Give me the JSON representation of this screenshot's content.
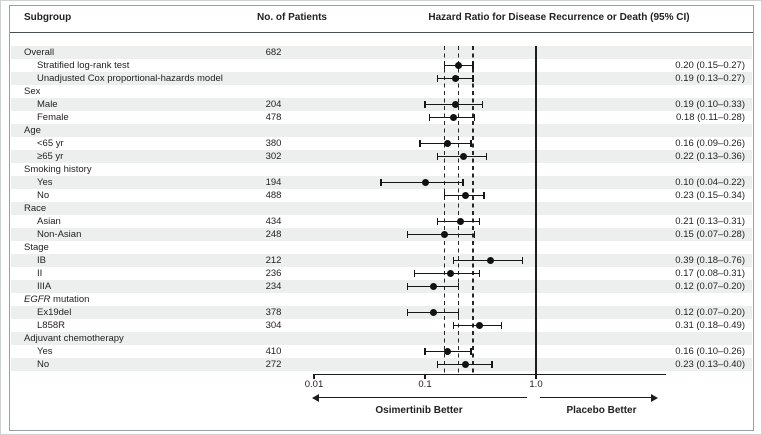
{
  "header": {
    "subgroup": "Subgroup",
    "patients": "No. of Patients",
    "hazard": "Hazard Ratio for Disease Recurrence or Death (95% CI)"
  },
  "footer": {
    "left_label": "Osimertinib Better",
    "right_label": "Placebo Better"
  },
  "colors": {
    "band": "#edefef",
    "ink": "#222222",
    "frame": "#98a0a3",
    "marker": "#111111"
  },
  "chart_data": {
    "type": "scatter",
    "subtype": "forest-plot",
    "title": "Hazard Ratio for Disease Recurrence or Death (95% CI)",
    "x_scale": "log",
    "x_tick_values": [
      0.01,
      0.1,
      1.0
    ],
    "x_tick_labels": [
      "0.01",
      "0.1",
      "1.0"
    ],
    "x_range": [
      0.01,
      15
    ],
    "reference_line": 1.0,
    "dashed_guides": [
      0.15,
      0.2,
      0.27
    ],
    "legend_position": "none",
    "grid": false,
    "rows": [
      {
        "label": "Overall",
        "indent": 0,
        "n": "682"
      },
      {
        "label": "Stratified log-rank test",
        "indent": 1,
        "hr": 0.2,
        "lo": 0.15,
        "hi": 0.27,
        "ci": "0.20 (0.15–0.27)"
      },
      {
        "label": "Unadjusted Cox proportional-hazards model",
        "indent": 1,
        "hr": 0.19,
        "lo": 0.13,
        "hi": 0.27,
        "ci": "0.19 (0.13–0.27)"
      },
      {
        "label": "Sex",
        "indent": 0
      },
      {
        "label": "Male",
        "indent": 1,
        "n": "204",
        "hr": 0.19,
        "lo": 0.1,
        "hi": 0.33,
        "ci": "0.19 (0.10–0.33)"
      },
      {
        "label": "Female",
        "indent": 1,
        "n": "478",
        "hr": 0.18,
        "lo": 0.11,
        "hi": 0.28,
        "ci": "0.18 (0.11–0.28)"
      },
      {
        "label": "Age",
        "indent": 0
      },
      {
        "label": "<65 yr",
        "indent": 1,
        "n": "380",
        "hr": 0.16,
        "lo": 0.09,
        "hi": 0.26,
        "ci": "0.16 (0.09–0.26)"
      },
      {
        "label": "≥65 yr",
        "indent": 1,
        "n": "302",
        "hr": 0.22,
        "lo": 0.13,
        "hi": 0.36,
        "ci": "0.22 (0.13–0.36)"
      },
      {
        "label": "Smoking history",
        "indent": 0
      },
      {
        "label": "Yes",
        "indent": 1,
        "n": "194",
        "hr": 0.1,
        "lo": 0.04,
        "hi": 0.22,
        "ci": "0.10 (0.04–0.22)"
      },
      {
        "label": "No",
        "indent": 1,
        "n": "488",
        "hr": 0.23,
        "lo": 0.15,
        "hi": 0.34,
        "ci": "0.23 (0.15–0.34)"
      },
      {
        "label": "Race",
        "indent": 0
      },
      {
        "label": "Asian",
        "indent": 1,
        "n": "434",
        "hr": 0.21,
        "lo": 0.13,
        "hi": 0.31,
        "ci": "0.21 (0.13–0.31)"
      },
      {
        "label": "Non-Asian",
        "indent": 1,
        "n": "248",
        "hr": 0.15,
        "lo": 0.07,
        "hi": 0.28,
        "ci": "0.15 (0.07–0.28)"
      },
      {
        "label": "Stage",
        "indent": 0
      },
      {
        "label": "IB",
        "indent": 1,
        "n": "212",
        "hr": 0.39,
        "lo": 0.18,
        "hi": 0.76,
        "ci": "0.39 (0.18–0.76)"
      },
      {
        "label": "II",
        "indent": 1,
        "n": "236",
        "hr": 0.17,
        "lo": 0.08,
        "hi": 0.31,
        "ci": "0.17 (0.08–0.31)"
      },
      {
        "label": "IIIA",
        "indent": 1,
        "n": "234",
        "hr": 0.12,
        "lo": 0.07,
        "hi": 0.2,
        "ci": "0.12 (0.07–0.20)"
      },
      {
        "em": "EGFR",
        "label": " mutation",
        "indent": 0
      },
      {
        "label": "Ex19del",
        "indent": 1,
        "n": "378",
        "hr": 0.12,
        "lo": 0.07,
        "hi": 0.2,
        "ci": "0.12 (0.07–0.20)"
      },
      {
        "label": "L858R",
        "indent": 1,
        "n": "304",
        "hr": 0.31,
        "lo": 0.18,
        "hi": 0.49,
        "ci": "0.31 (0.18–0.49)"
      },
      {
        "label": "Adjuvant chemotherapy",
        "indent": 0
      },
      {
        "label": "Yes",
        "indent": 1,
        "n": "410",
        "hr": 0.16,
        "lo": 0.1,
        "hi": 0.26,
        "ci": "0.16 (0.10–0.26)"
      },
      {
        "label": "No",
        "indent": 1,
        "n": "272",
        "hr": 0.23,
        "lo": 0.13,
        "hi": 0.4,
        "ci": "0.23 (0.13–0.40)"
      }
    ]
  }
}
